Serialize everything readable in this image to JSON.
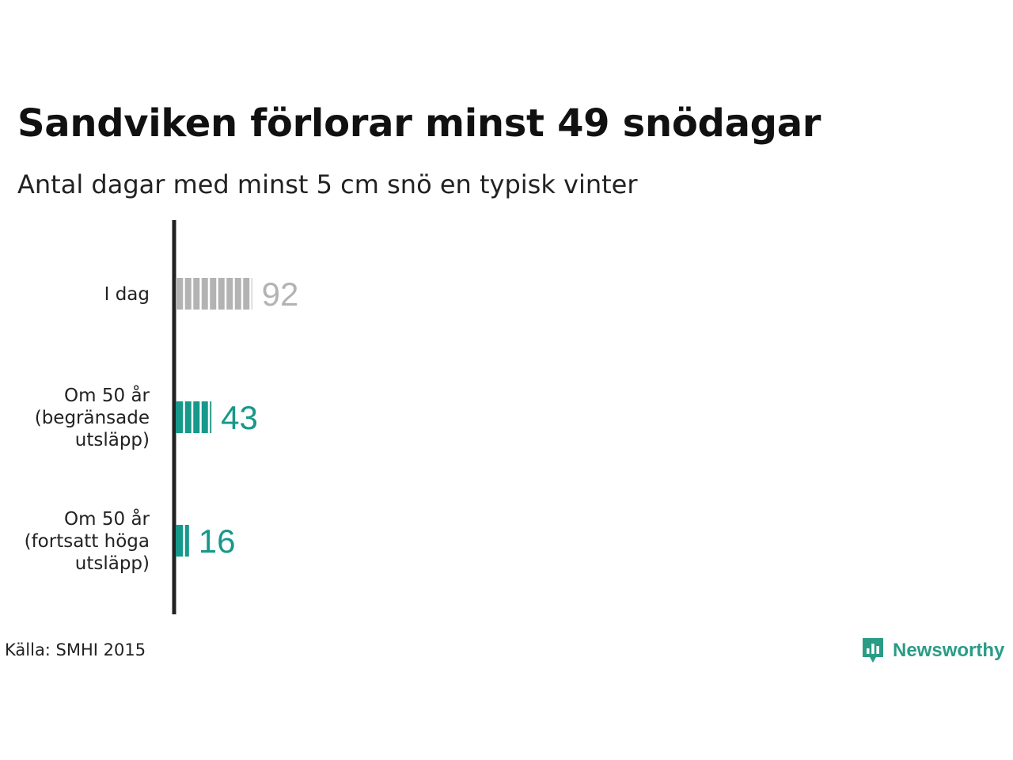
{
  "chart_data": {
    "type": "bar",
    "orientation": "horizontal",
    "title": "Sandviken förlorar minst 49 snödagar",
    "subtitle": "Antal dagar med minst 5 cm snö en typisk vinter",
    "categories": [
      [
        "I dag"
      ],
      [
        "Om 50 år",
        "(begränsade",
        "utsläpp)"
      ],
      [
        "Om 50 år",
        "(fortsatt höga",
        "utsläpp)"
      ]
    ],
    "values": [
      92,
      43,
      16
    ],
    "value_labels": [
      "92",
      "43",
      "16"
    ],
    "colors": [
      "#b3b3b3",
      "#16988a",
      "#16988a"
    ],
    "label_colors": [
      "#b3b3b3",
      "#16988a",
      "#16988a"
    ],
    "segment_step": 10,
    "grid": false
  },
  "footer": {
    "source": "Källa: SMHI 2015",
    "brand": "Newsworthy",
    "brand_icon": "bar-chart-speech-bubble-icon",
    "brand_color": "#2a9c86"
  }
}
